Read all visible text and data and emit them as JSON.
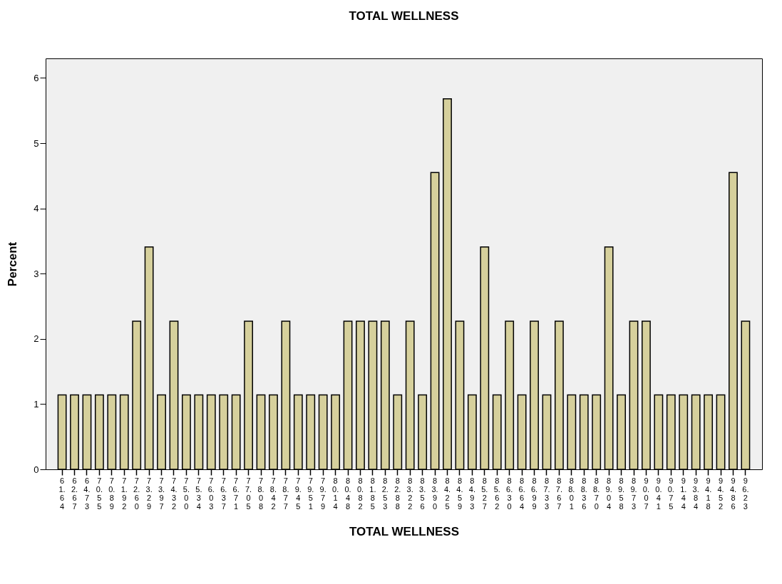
{
  "chart_data": {
    "type": "bar",
    "title": "TOTAL WELLNESS",
    "xlabel": "TOTAL WELLNESS",
    "ylabel": "Percent",
    "categories": [
      "61.64",
      "62.67",
      "64.73",
      "70.55",
      "70.89",
      "71.92",
      "72.60",
      "73.29",
      "73.97",
      "74.32",
      "75.00",
      "75.34",
      "76.03",
      "76.37",
      "76.71",
      "77.05",
      "78.08",
      "78.42",
      "78.77",
      "79.45",
      "79.51",
      "79.79",
      "80.14",
      "80.48",
      "80.82",
      "81.85",
      "82.53",
      "82.88",
      "83.22",
      "83.56",
      "83.90",
      "84.25",
      "84.59",
      "84.93",
      "85.27",
      "85.62",
      "86.30",
      "86.64",
      "86.99",
      "87.33",
      "87.67",
      "88.01",
      "88.36",
      "88.70",
      "89.04",
      "89.58",
      "89.73",
      "90.07",
      "90.41",
      "90.75",
      "91.44",
      "93.84",
      "94.18",
      "94.52",
      "94.86",
      "96.23"
    ],
    "values": [
      1.14,
      1.14,
      1.14,
      1.14,
      1.14,
      1.14,
      2.27,
      3.41,
      1.14,
      2.27,
      1.14,
      1.14,
      1.14,
      1.14,
      1.14,
      2.27,
      1.14,
      1.14,
      2.27,
      1.14,
      1.14,
      1.14,
      1.14,
      2.27,
      2.27,
      2.27,
      2.27,
      1.14,
      2.27,
      1.14,
      4.55,
      5.68,
      2.27,
      1.14,
      3.41,
      1.14,
      2.27,
      1.14,
      2.27,
      1.14,
      2.27,
      1.14,
      1.14,
      1.14,
      3.41,
      1.14,
      2.27,
      2.27,
      1.14,
      1.14,
      1.14,
      1.14,
      1.14,
      1.14,
      4.55,
      2.27
    ],
    "color": "#d6d09c",
    "ylim": [
      0,
      6.3
    ],
    "yticks": [
      0,
      1,
      2,
      3,
      4,
      5,
      6
    ],
    "grid": false
  }
}
